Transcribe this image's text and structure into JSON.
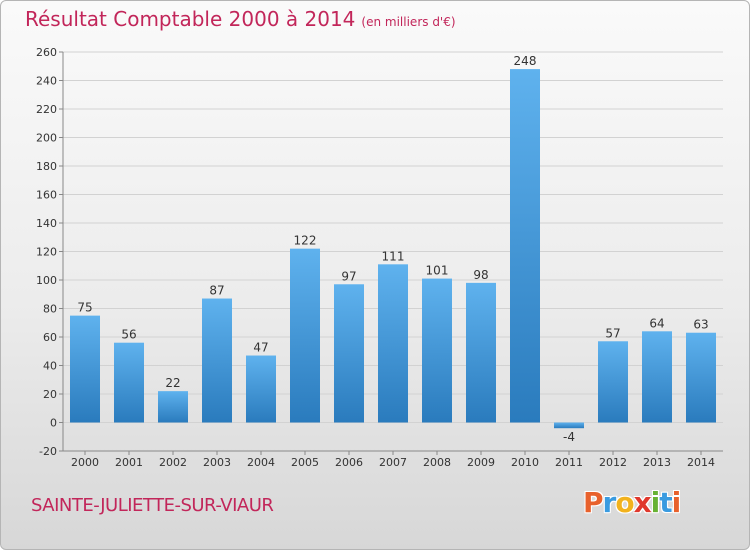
{
  "title": "Résultat Comptable 2000 à 2014",
  "subtitle": "(en milliers d'€)",
  "place": "SAINTE-JULIETTE-SUR-VIAUR",
  "logo": {
    "letters": [
      "P",
      "r",
      "o",
      "x",
      "i",
      "t",
      "i"
    ],
    "colors": [
      "#e8612c",
      "#3a9be0",
      "#f2b21d",
      "#e0382c",
      "#67b233",
      "#3a9be0",
      "#e8612c"
    ]
  },
  "colors": {
    "bar_light": "#5fb2ee",
    "bar_dark": "#2a7bbd",
    "title": "#c2265a"
  },
  "chart_data": {
    "type": "bar",
    "title": "Résultat Comptable 2000 à 2014",
    "ylabel": "(en milliers d'€)",
    "xlabel": "",
    "categories": [
      "2000",
      "2001",
      "2002",
      "2003",
      "2004",
      "2005",
      "2006",
      "2007",
      "2008",
      "2009",
      "2010",
      "2011",
      "2012",
      "2013",
      "2014"
    ],
    "values": [
      75,
      56,
      22,
      87,
      47,
      122,
      97,
      111,
      101,
      98,
      248,
      -4,
      57,
      64,
      63
    ],
    "ylim": [
      -20,
      260
    ],
    "yticks": [
      -20,
      0,
      20,
      40,
      60,
      80,
      100,
      120,
      140,
      160,
      180,
      200,
      220,
      240,
      260
    ],
    "grid": true
  }
}
